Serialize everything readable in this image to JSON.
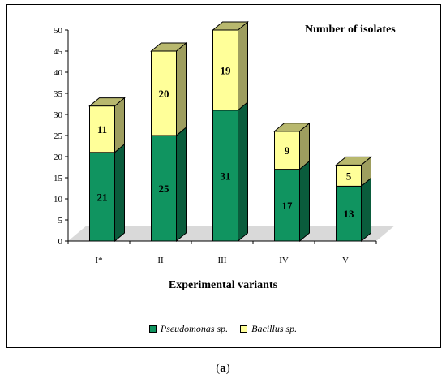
{
  "caption": {
    "open": "(",
    "letter": "a",
    "close": ")"
  },
  "chart_data": {
    "type": "bar",
    "stacked": true,
    "three_d": true,
    "title": "Number of isolates",
    "xlabel": "Experimental variants",
    "ylabel": "",
    "ylim": [
      0,
      50
    ],
    "yticks": [
      0,
      5,
      10,
      15,
      20,
      25,
      30,
      35,
      40,
      45,
      50
    ],
    "categories": [
      "I*",
      "II",
      "III",
      "IV",
      "V"
    ],
    "series": [
      {
        "name": "Pseudomonas sp.",
        "values": [
          21,
          25,
          31,
          17,
          13
        ],
        "color": "#109460"
      },
      {
        "name": "Bacillus sp.",
        "values": [
          11,
          20,
          19,
          9,
          5
        ],
        "color": "#ffff99"
      }
    ],
    "floor_color": "#d9d9d9",
    "legend_position": "bottom",
    "data_labels": true,
    "grid": false
  }
}
